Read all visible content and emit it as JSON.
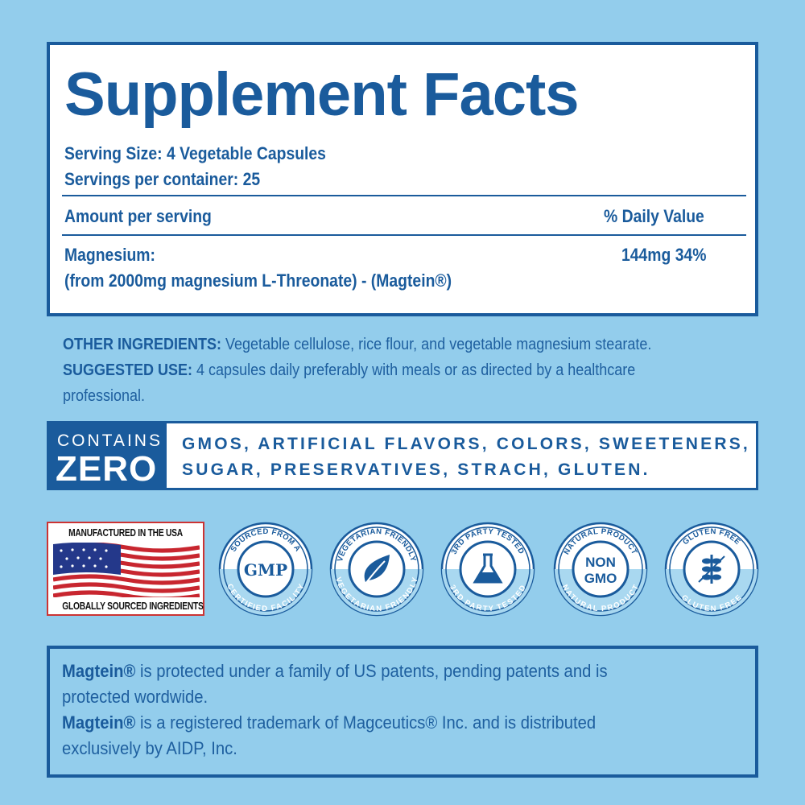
{
  "facts": {
    "title": "Supplement Facts",
    "serving_size": "Serving Size: 4 Vegetable Capsules",
    "servings_per_container": "Servings per container: 25",
    "amount_header": "Amount per serving",
    "dv_header": "% Daily Value",
    "ingredient_name": "Magnesium:",
    "ingredient_source": "(from 2000mg magnesium L-Threonate) - (Magtein®)",
    "ingredient_amount": "144mg 34%"
  },
  "other": {
    "other_label": "OTHER INGREDIENTS:",
    "other_text": " Vegetable cellulose, rice flour, and vegetable magnesium stearate.",
    "use_label": "SUGGESTED USE:",
    "use_text": " 4 capsules daily preferably with meals or as directed by a healthcare",
    "use_text2": "professional."
  },
  "zero": {
    "contains": "CONTAINS",
    "zero": "ZERO",
    "line1": "GMOS, ARTIFICIAL FLAVORS, COLORS, SWEETENERS,",
    "line2": "SUGAR, PRESERVATIVES, STRACH, GLUTEN."
  },
  "badges": {
    "usa_top": "MANUFACTURED IN THE USA",
    "usa_bottom": "GLOBALLY SOURCED INGREDIENTS",
    "items": [
      {
        "top": "SOURCED FROM A",
        "center": "GMP",
        "bottom": "CERTIFIED FACILITY",
        "icon": "gmp-icon"
      },
      {
        "top": "VEGETARIAN FRIENDLY",
        "center": "",
        "bottom": "VEGETARIAN FRIENDLY",
        "icon": "leaf-icon"
      },
      {
        "top": "3RD PARTY TESTED",
        "center": "",
        "bottom": "3RD PARTY TESTED",
        "icon": "flask-icon"
      },
      {
        "top": "NATURAL PRODUCT",
        "center": "NON GMO",
        "bottom": "NATURAL PRODUCT",
        "icon": "non-gmo-icon"
      },
      {
        "top": "GLUTEN FREE",
        "center": "",
        "bottom": "GLUTEN FREE",
        "icon": "no-wheat-icon"
      }
    ]
  },
  "legal": {
    "brand": "Magtein®",
    "line1": " is protected under a family of US patents, pending patents and is",
    "line2": "protected wordwide.",
    "line3": " is a registered trademark of Magceutics® Inc. and is distributed",
    "line4": "exclusively by AIDP, Inc."
  },
  "colors": {
    "background": "#93cdec",
    "primary": "#1a5b9c"
  }
}
